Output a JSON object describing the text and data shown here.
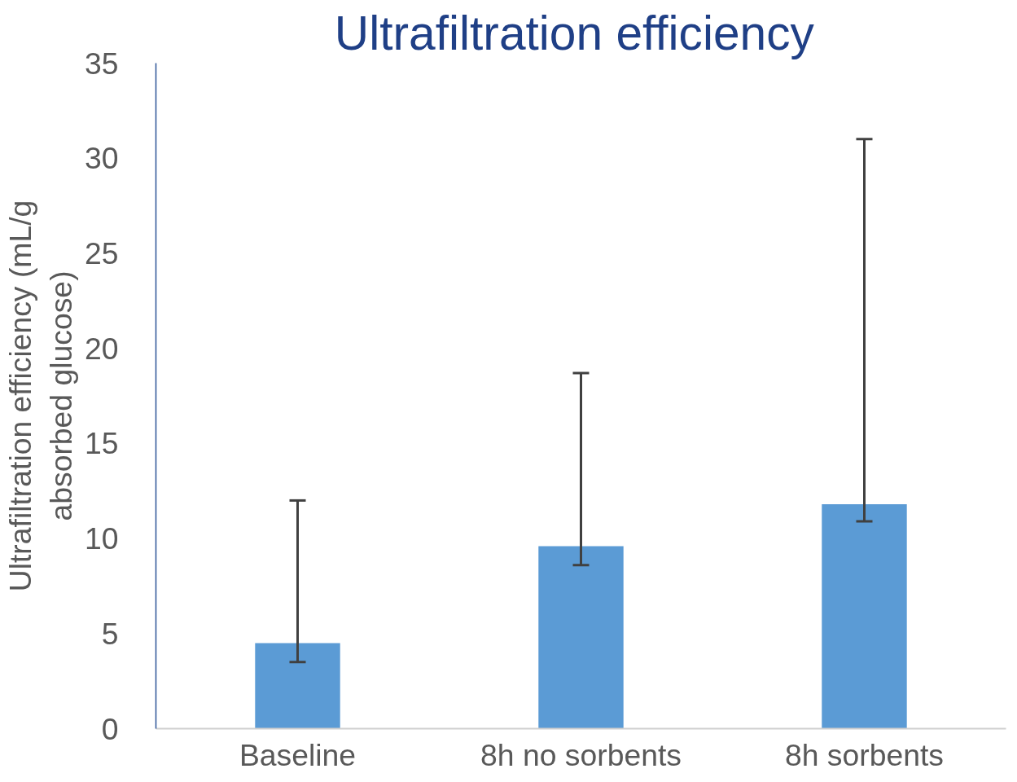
{
  "chart_data": {
    "type": "bar",
    "title": "Ultrafiltration  efficiency",
    "ylabel": "Ultrafiltration efficiency (mL/g\nabsorbed glucose)",
    "categories": [
      "Baseline",
      "8h no sorbents",
      "8h sorbents"
    ],
    "values": [
      4.5,
      9.6,
      11.8
    ],
    "errors": [
      [
        3.5,
        12.0
      ],
      [
        8.6,
        18.7
      ],
      [
        10.9,
        31.0
      ]
    ],
    "color": "#5b9bd5",
    "ylim": [
      0,
      35
    ],
    "yticks": [
      0,
      5,
      10,
      15,
      20,
      25,
      30,
      35
    ],
    "grid": false
  }
}
